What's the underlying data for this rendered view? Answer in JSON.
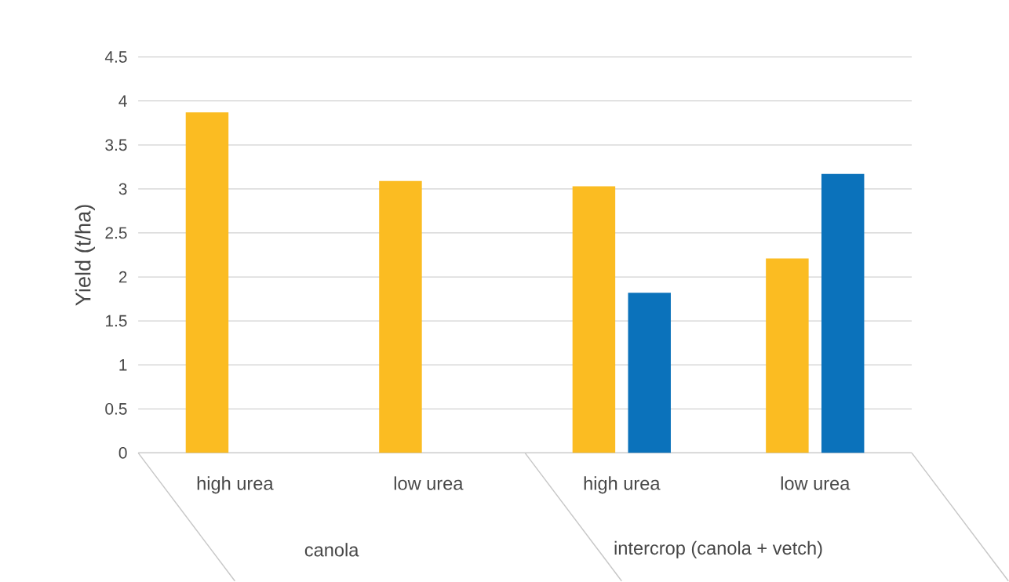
{
  "chart_data": {
    "type": "bar",
    "ylabel": "Yield (t/ha)",
    "categories": [
      "high urea",
      "low urea",
      "high urea",
      "low urea"
    ],
    "annotations": [
      "canola",
      "intercrop (canola + vetch)"
    ],
    "series": [
      {
        "color": "#fbbc22",
        "values": [
          3.87,
          3.09,
          3.03,
          2.21
        ]
      },
      {
        "color": "#0b72bb",
        "values": [
          null,
          null,
          1.82,
          3.17
        ]
      }
    ],
    "ylim": [
      0,
      4.5
    ],
    "yticks": [
      0,
      0.5,
      1,
      1.5,
      2,
      2.5,
      3,
      3.5,
      4,
      4.5
    ],
    "grid": "y"
  }
}
